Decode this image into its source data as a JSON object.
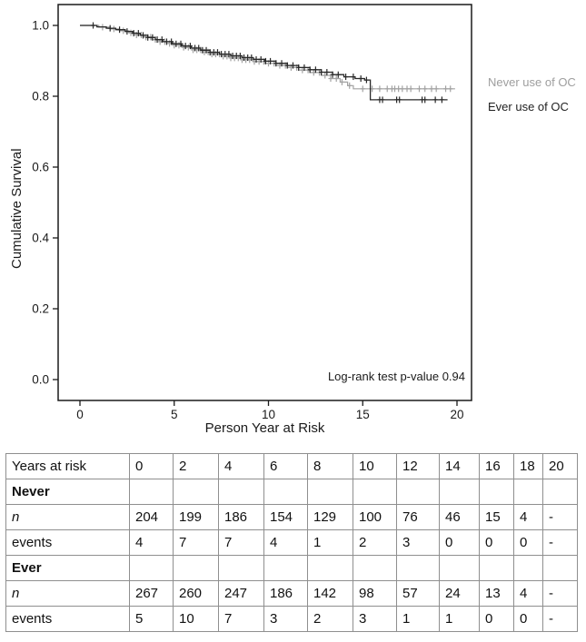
{
  "chart": {
    "y_axis_label": "Cumulative Survival",
    "x_axis_label": "Person Year at Risk",
    "annotation": "Log-rank test p-value 0.94",
    "legend": {
      "never_label": "Never use of OC",
      "ever_label": "Ever use of OC",
      "never_color": "#9e9e9e",
      "ever_color": "#1f1f1f"
    }
  },
  "chart_data": {
    "type": "line",
    "subtype": "kaplan-meier-step",
    "title": "",
    "xlabel": "Person Year at Risk",
    "ylabel": "Cumulative Survival",
    "xlim": [
      0,
      20
    ],
    "ylim": [
      0.0,
      1.0
    ],
    "x_ticks": [
      0,
      5,
      10,
      15,
      20
    ],
    "y_ticks": [
      "0.0",
      "0.2",
      "0.4",
      "0.6",
      "0.8",
      "1.0"
    ],
    "grid": false,
    "legend_position": "right-outside",
    "annotation": "Log-rank test p-value 0.94",
    "series": [
      {
        "name": "Never use of OC",
        "color": "#a2a2a2",
        "points": [
          [
            0,
            1.0
          ],
          [
            1.0,
            0.995
          ],
          [
            1.6,
            0.99
          ],
          [
            2.1,
            0.985
          ],
          [
            2.6,
            0.979
          ],
          [
            3.0,
            0.973
          ],
          [
            3.4,
            0.967
          ],
          [
            3.8,
            0.96
          ],
          [
            4.2,
            0.954
          ],
          [
            4.6,
            0.949
          ],
          [
            5.0,
            0.944
          ],
          [
            5.5,
            0.938
          ],
          [
            6.0,
            0.931
          ],
          [
            6.5,
            0.925
          ],
          [
            7.0,
            0.919
          ],
          [
            7.5,
            0.913
          ],
          [
            8.0,
            0.908
          ],
          [
            8.6,
            0.903
          ],
          [
            9.2,
            0.898
          ],
          [
            9.8,
            0.893
          ],
          [
            10.4,
            0.887
          ],
          [
            11.0,
            0.881
          ],
          [
            11.6,
            0.874
          ],
          [
            12.2,
            0.867
          ],
          [
            12.8,
            0.859
          ],
          [
            13.3,
            0.85
          ],
          [
            13.8,
            0.84
          ],
          [
            14.2,
            0.83
          ],
          [
            14.5,
            0.821
          ],
          [
            19.9,
            0.821
          ]
        ],
        "censor_times": [
          1.2,
          1.8,
          2.3,
          2.7,
          3.0,
          3.25,
          3.5,
          3.75,
          4.0,
          4.25,
          4.5,
          4.75,
          5.0,
          5.25,
          5.5,
          5.75,
          6.0,
          6.2,
          6.4,
          6.6,
          6.8,
          7.0,
          7.2,
          7.4,
          7.6,
          7.8,
          8.0,
          8.2,
          8.4,
          8.6,
          8.8,
          9.0,
          9.25,
          9.5,
          9.75,
          10.0,
          10.3,
          10.6,
          10.9,
          11.2,
          11.5,
          11.8,
          12.1,
          12.4,
          12.7,
          13.0,
          13.3,
          13.6,
          13.9,
          14.3,
          15.0,
          15.5,
          15.9,
          16.3,
          16.55,
          16.7,
          16.9,
          17.1,
          17.35,
          17.55,
          18.0,
          18.3,
          18.65,
          18.9,
          19.4,
          19.65
        ]
      },
      {
        "name": "Ever use of OC",
        "color": "#282828",
        "points": [
          [
            0,
            1.0
          ],
          [
            0.9,
            0.996
          ],
          [
            1.4,
            0.992
          ],
          [
            1.9,
            0.988
          ],
          [
            2.4,
            0.983
          ],
          [
            2.8,
            0.978
          ],
          [
            3.2,
            0.972
          ],
          [
            3.6,
            0.966
          ],
          [
            4.0,
            0.96
          ],
          [
            4.4,
            0.954
          ],
          [
            4.9,
            0.948
          ],
          [
            5.4,
            0.942
          ],
          [
            5.9,
            0.936
          ],
          [
            6.4,
            0.93
          ],
          [
            6.9,
            0.924
          ],
          [
            7.4,
            0.919
          ],
          [
            8.0,
            0.914
          ],
          [
            8.6,
            0.909
          ],
          [
            9.2,
            0.904
          ],
          [
            9.8,
            0.899
          ],
          [
            10.4,
            0.893
          ],
          [
            11.0,
            0.887
          ],
          [
            11.6,
            0.881
          ],
          [
            12.2,
            0.875
          ],
          [
            12.8,
            0.868
          ],
          [
            13.4,
            0.861
          ],
          [
            14.0,
            0.855
          ],
          [
            14.6,
            0.85
          ],
          [
            15.1,
            0.846
          ],
          [
            15.4,
            0.79
          ],
          [
            19.5,
            0.79
          ]
        ],
        "censor_times": [
          0.7,
          1.6,
          2.1,
          2.5,
          2.85,
          3.1,
          3.35,
          3.6,
          3.85,
          4.1,
          4.35,
          4.6,
          4.85,
          5.1,
          5.35,
          5.6,
          5.85,
          6.1,
          6.3,
          6.5,
          6.7,
          6.9,
          7.1,
          7.3,
          7.5,
          7.7,
          7.9,
          8.1,
          8.3,
          8.5,
          8.7,
          8.9,
          9.1,
          9.35,
          9.6,
          9.85,
          10.1,
          10.4,
          10.7,
          11.0,
          11.3,
          11.6,
          11.9,
          12.2,
          12.5,
          12.8,
          13.1,
          13.4,
          13.7,
          14.1,
          14.5,
          14.9,
          15.2,
          15.9,
          16.05,
          16.8,
          16.95,
          18.15,
          18.3,
          18.85,
          19.2
        ]
      }
    ]
  },
  "risk_table": {
    "header": [
      "Years at risk",
      "0",
      "2",
      "4",
      "6",
      "8",
      "10",
      "12",
      "14",
      "16",
      "18",
      "20"
    ],
    "rows": [
      {
        "label": "Never",
        "style": "bold",
        "values": [
          "",
          "",
          "",
          "",
          "",
          "",
          "",
          "",
          "",
          "",
          ""
        ]
      },
      {
        "label": "n",
        "style": "italic",
        "values": [
          "204",
          "199",
          "186",
          "154",
          "129",
          "100",
          "76",
          "46",
          "15",
          "4",
          "-"
        ]
      },
      {
        "label": "events",
        "style": "normal",
        "values": [
          "4",
          "7",
          "7",
          "4",
          "1",
          "2",
          "3",
          "0",
          "0",
          "0",
          "-"
        ]
      },
      {
        "label": "Ever",
        "style": "bold",
        "values": [
          "",
          "",
          "",
          "",
          "",
          "",
          "",
          "",
          "",
          "",
          ""
        ]
      },
      {
        "label": "n",
        "style": "italic",
        "values": [
          "267",
          "260",
          "247",
          "186",
          "142",
          "98",
          "57",
          "24",
          "13",
          "4",
          "-"
        ]
      },
      {
        "label": "events",
        "style": "normal",
        "values": [
          "5",
          "10",
          "7",
          "3",
          "2",
          "3",
          "1",
          "1",
          "0",
          "0",
          "-"
        ]
      }
    ]
  }
}
